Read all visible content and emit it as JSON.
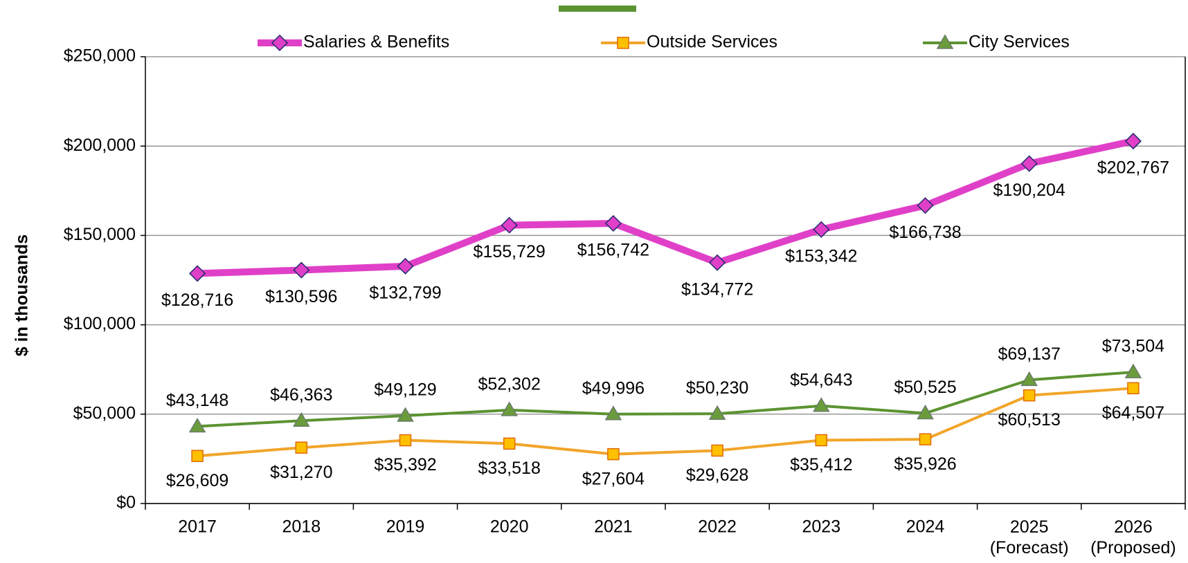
{
  "chart_data": {
    "type": "line",
    "y_label": "$ in thousands",
    "categories": [
      "2017",
      "2018",
      "2019",
      "2020",
      "2021",
      "2022",
      "2023",
      "2024",
      "2025\n(Forecast)",
      "2026\n(Proposed)"
    ],
    "series": [
      {
        "name": "Salaries & Benefits",
        "color": "#e040c8",
        "marker": "diamond",
        "values": [
          128716,
          130596,
          132799,
          155729,
          156742,
          134772,
          153342,
          166738,
          190204,
          202767
        ],
        "value_labels": [
          "$128,716",
          "$130,596",
          "$132,799",
          "$155,729",
          "$156,742",
          "$134,772",
          "$153,342",
          "$166,738",
          "$190,204",
          "$202,767"
        ]
      },
      {
        "name": "Outside Services",
        "color": "#f2a52a",
        "marker": "square",
        "values": [
          26609,
          31270,
          35392,
          33518,
          27604,
          29628,
          35412,
          35926,
          60513,
          64507
        ],
        "value_labels": [
          "$26,609",
          "$31,270",
          "$35,392",
          "$33,518",
          "$27,604",
          "$29,628",
          "$35,412",
          "$35,926",
          "$60,513",
          "$64,507"
        ]
      },
      {
        "name": "City Services",
        "color": "#5b9332",
        "marker": "triangle",
        "values": [
          43148,
          46363,
          49129,
          52302,
          49996,
          50230,
          54643,
          50525,
          69137,
          73504
        ],
        "value_labels": [
          "$43,148",
          "$46,363",
          "$49,129",
          "$52,302",
          "$49,996",
          "$50,230",
          "$54,643",
          "$50,525",
          "$69,137",
          "$73,504"
        ]
      }
    ],
    "ylim": [
      0,
      250000
    ],
    "yticks": [
      {
        "value": 0,
        "label": "$0"
      },
      {
        "value": 50000,
        "label": "$50,000"
      },
      {
        "value": 100000,
        "label": "$100,000"
      },
      {
        "value": 150000,
        "label": "$150,000"
      },
      {
        "value": 200000,
        "label": "$200,000"
      },
      {
        "value": 250000,
        "label": "$250,000"
      }
    ],
    "grid": true,
    "legend": "top"
  }
}
